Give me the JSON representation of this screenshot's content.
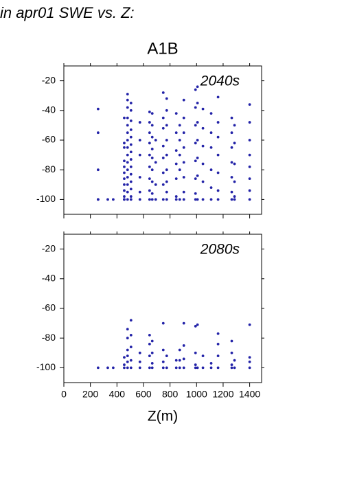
{
  "figure": {
    "title": "in apr01 SWE vs. Z:",
    "heading": "A1B"
  },
  "chart_data": [
    {
      "type": "scatter",
      "annotation": "2040s",
      "color": "#2323a8",
      "xlim": [
        0,
        1490
      ],
      "ylim": [
        -110,
        -10
      ],
      "xticks": [
        0,
        200,
        400,
        600,
        800,
        1000,
        1200,
        1400
      ],
      "yticks": [
        -20,
        -40,
        -60,
        -80,
        -100
      ],
      "show_xtick_labels": false,
      "x": [
        258,
        258,
        258,
        258,
        258,
        331,
        372,
        455,
        455,
        455,
        455,
        455,
        455,
        455,
        455,
        455,
        455,
        455,
        455,
        480,
        480,
        480,
        480,
        480,
        480,
        480,
        480,
        480,
        480,
        480,
        480,
        480,
        480,
        480,
        506,
        506,
        506,
        506,
        506,
        506,
        506,
        506,
        506,
        506,
        506,
        506,
        506,
        506,
        573,
        573,
        573,
        573,
        573,
        573,
        646,
        646,
        646,
        646,
        646,
        646,
        646,
        646,
        646,
        666,
        666,
        666,
        666,
        666,
        666,
        666,
        666,
        666,
        692,
        692,
        692,
        692,
        749,
        749,
        749,
        749,
        749,
        749,
        749,
        749,
        775,
        775,
        775,
        775,
        775,
        775,
        775,
        775,
        775,
        847,
        847,
        847,
        847,
        847,
        847,
        847,
        873,
        873,
        873,
        873,
        873,
        904,
        904,
        904,
        904,
        904,
        904,
        904,
        904,
        992,
        992,
        992,
        992,
        992,
        992,
        992,
        992,
        1007,
        1007,
        1007,
        1007,
        1007,
        1007,
        1007,
        1048,
        1048,
        1048,
        1048,
        1048,
        1048,
        1110,
        1110,
        1110,
        1110,
        1110,
        1110,
        1162,
        1162,
        1162,
        1162,
        1162,
        1162,
        1162,
        1265,
        1265,
        1265,
        1265,
        1265,
        1265,
        1265,
        1286,
        1286,
        1286,
        1286,
        1286,
        1286,
        1400,
        1400,
        1400,
        1400,
        1400,
        1400,
        1400,
        1400
      ],
      "values": [
        -39,
        -55,
        -80,
        -100,
        -100,
        -100,
        -100,
        -45,
        -62,
        -65,
        -74,
        -78,
        -82,
        -86,
        -90,
        -94,
        -98,
        -100,
        -100,
        -29,
        -33,
        -38,
        -45,
        -50,
        -55,
        -60,
        -65,
        -70,
        -75,
        -80,
        -85,
        -90,
        -95,
        -100,
        -35,
        -40,
        -47,
        -53,
        -58,
        -63,
        -68,
        -73,
        -78,
        -83,
        -88,
        -93,
        -98,
        -100,
        -48,
        -60,
        -70,
        -85,
        -95,
        -100,
        -41,
        -48,
        -55,
        -62,
        -70,
        -78,
        -86,
        -94,
        -100,
        -42,
        -50,
        -58,
        -66,
        -72,
        -80,
        -88,
        -96,
        -100,
        -60,
        -75,
        -90,
        -100,
        -28,
        -45,
        -52,
        -64,
        -72,
        -82,
        -90,
        -100,
        -32,
        -40,
        -50,
        -60,
        -70,
        -80,
        -88,
        -95,
        -100,
        -42,
        -55,
        -67,
        -76,
        -86,
        -98,
        -100,
        -50,
        -60,
        -70,
        -80,
        -100,
        -33,
        -45,
        -55,
        -65,
        -75,
        -85,
        -95,
        -100,
        -26,
        -38,
        -50,
        -62,
        -74,
        -86,
        -96,
        -100,
        -24,
        -35,
        -48,
        -60,
        -72,
        -84,
        -100,
        -39,
        -52,
        -64,
        -76,
        -88,
        -100,
        -42,
        -55,
        -65,
        -80,
        -92,
        -100,
        -31,
        -48,
        -58,
        -70,
        -82,
        -94,
        -100,
        -45,
        -55,
        -65,
        -75,
        -85,
        -95,
        -100,
        -50,
        -62,
        -76,
        -88,
        -98,
        -100,
        -36,
        -48,
        -60,
        -70,
        -78,
        -86,
        -94,
        -100
      ]
    },
    {
      "type": "scatter",
      "annotation": "2080s",
      "color": "#2323a8",
      "xlabel": "Z(m)",
      "xlim": [
        0,
        1490
      ],
      "ylim": [
        -110,
        -10
      ],
      "xticks": [
        0,
        200,
        400,
        600,
        800,
        1000,
        1200,
        1400
      ],
      "yticks": [
        -20,
        -40,
        -60,
        -80,
        -100
      ],
      "show_xtick_labels": true,
      "x": [
        258,
        331,
        372,
        455,
        455,
        455,
        480,
        480,
        480,
        480,
        480,
        480,
        506,
        506,
        506,
        506,
        506,
        573,
        573,
        573,
        646,
        646,
        646,
        646,
        666,
        666,
        666,
        666,
        749,
        749,
        749,
        749,
        775,
        775,
        847,
        847,
        873,
        873,
        873,
        904,
        904,
        904,
        904,
        992,
        992,
        992,
        992,
        1007,
        1007,
        1048,
        1048,
        1110,
        1110,
        1162,
        1162,
        1162,
        1162,
        1265,
        1265,
        1265,
        1265,
        1286,
        1286,
        1400,
        1400,
        1400,
        1400
      ],
      "values": [
        -100,
        -100,
        -100,
        -93,
        -98,
        -100,
        -74,
        -80,
        -88,
        -92,
        -96,
        -100,
        -68,
        -78,
        -86,
        -95,
        -100,
        -90,
        -96,
        -100,
        -78,
        -84,
        -92,
        -100,
        -82,
        -90,
        -97,
        -100,
        -70,
        -88,
        -96,
        -100,
        -92,
        -100,
        -95,
        -100,
        -88,
        -95,
        -100,
        -70,
        -85,
        -94,
        -100,
        -72,
        -90,
        -98,
        -100,
        -71,
        -100,
        -92,
        -100,
        -97,
        -100,
        -77,
        -84,
        -92,
        -100,
        -82,
        -90,
        -98,
        -100,
        -95,
        -100,
        -71,
        -93,
        -96,
        -100
      ]
    }
  ]
}
